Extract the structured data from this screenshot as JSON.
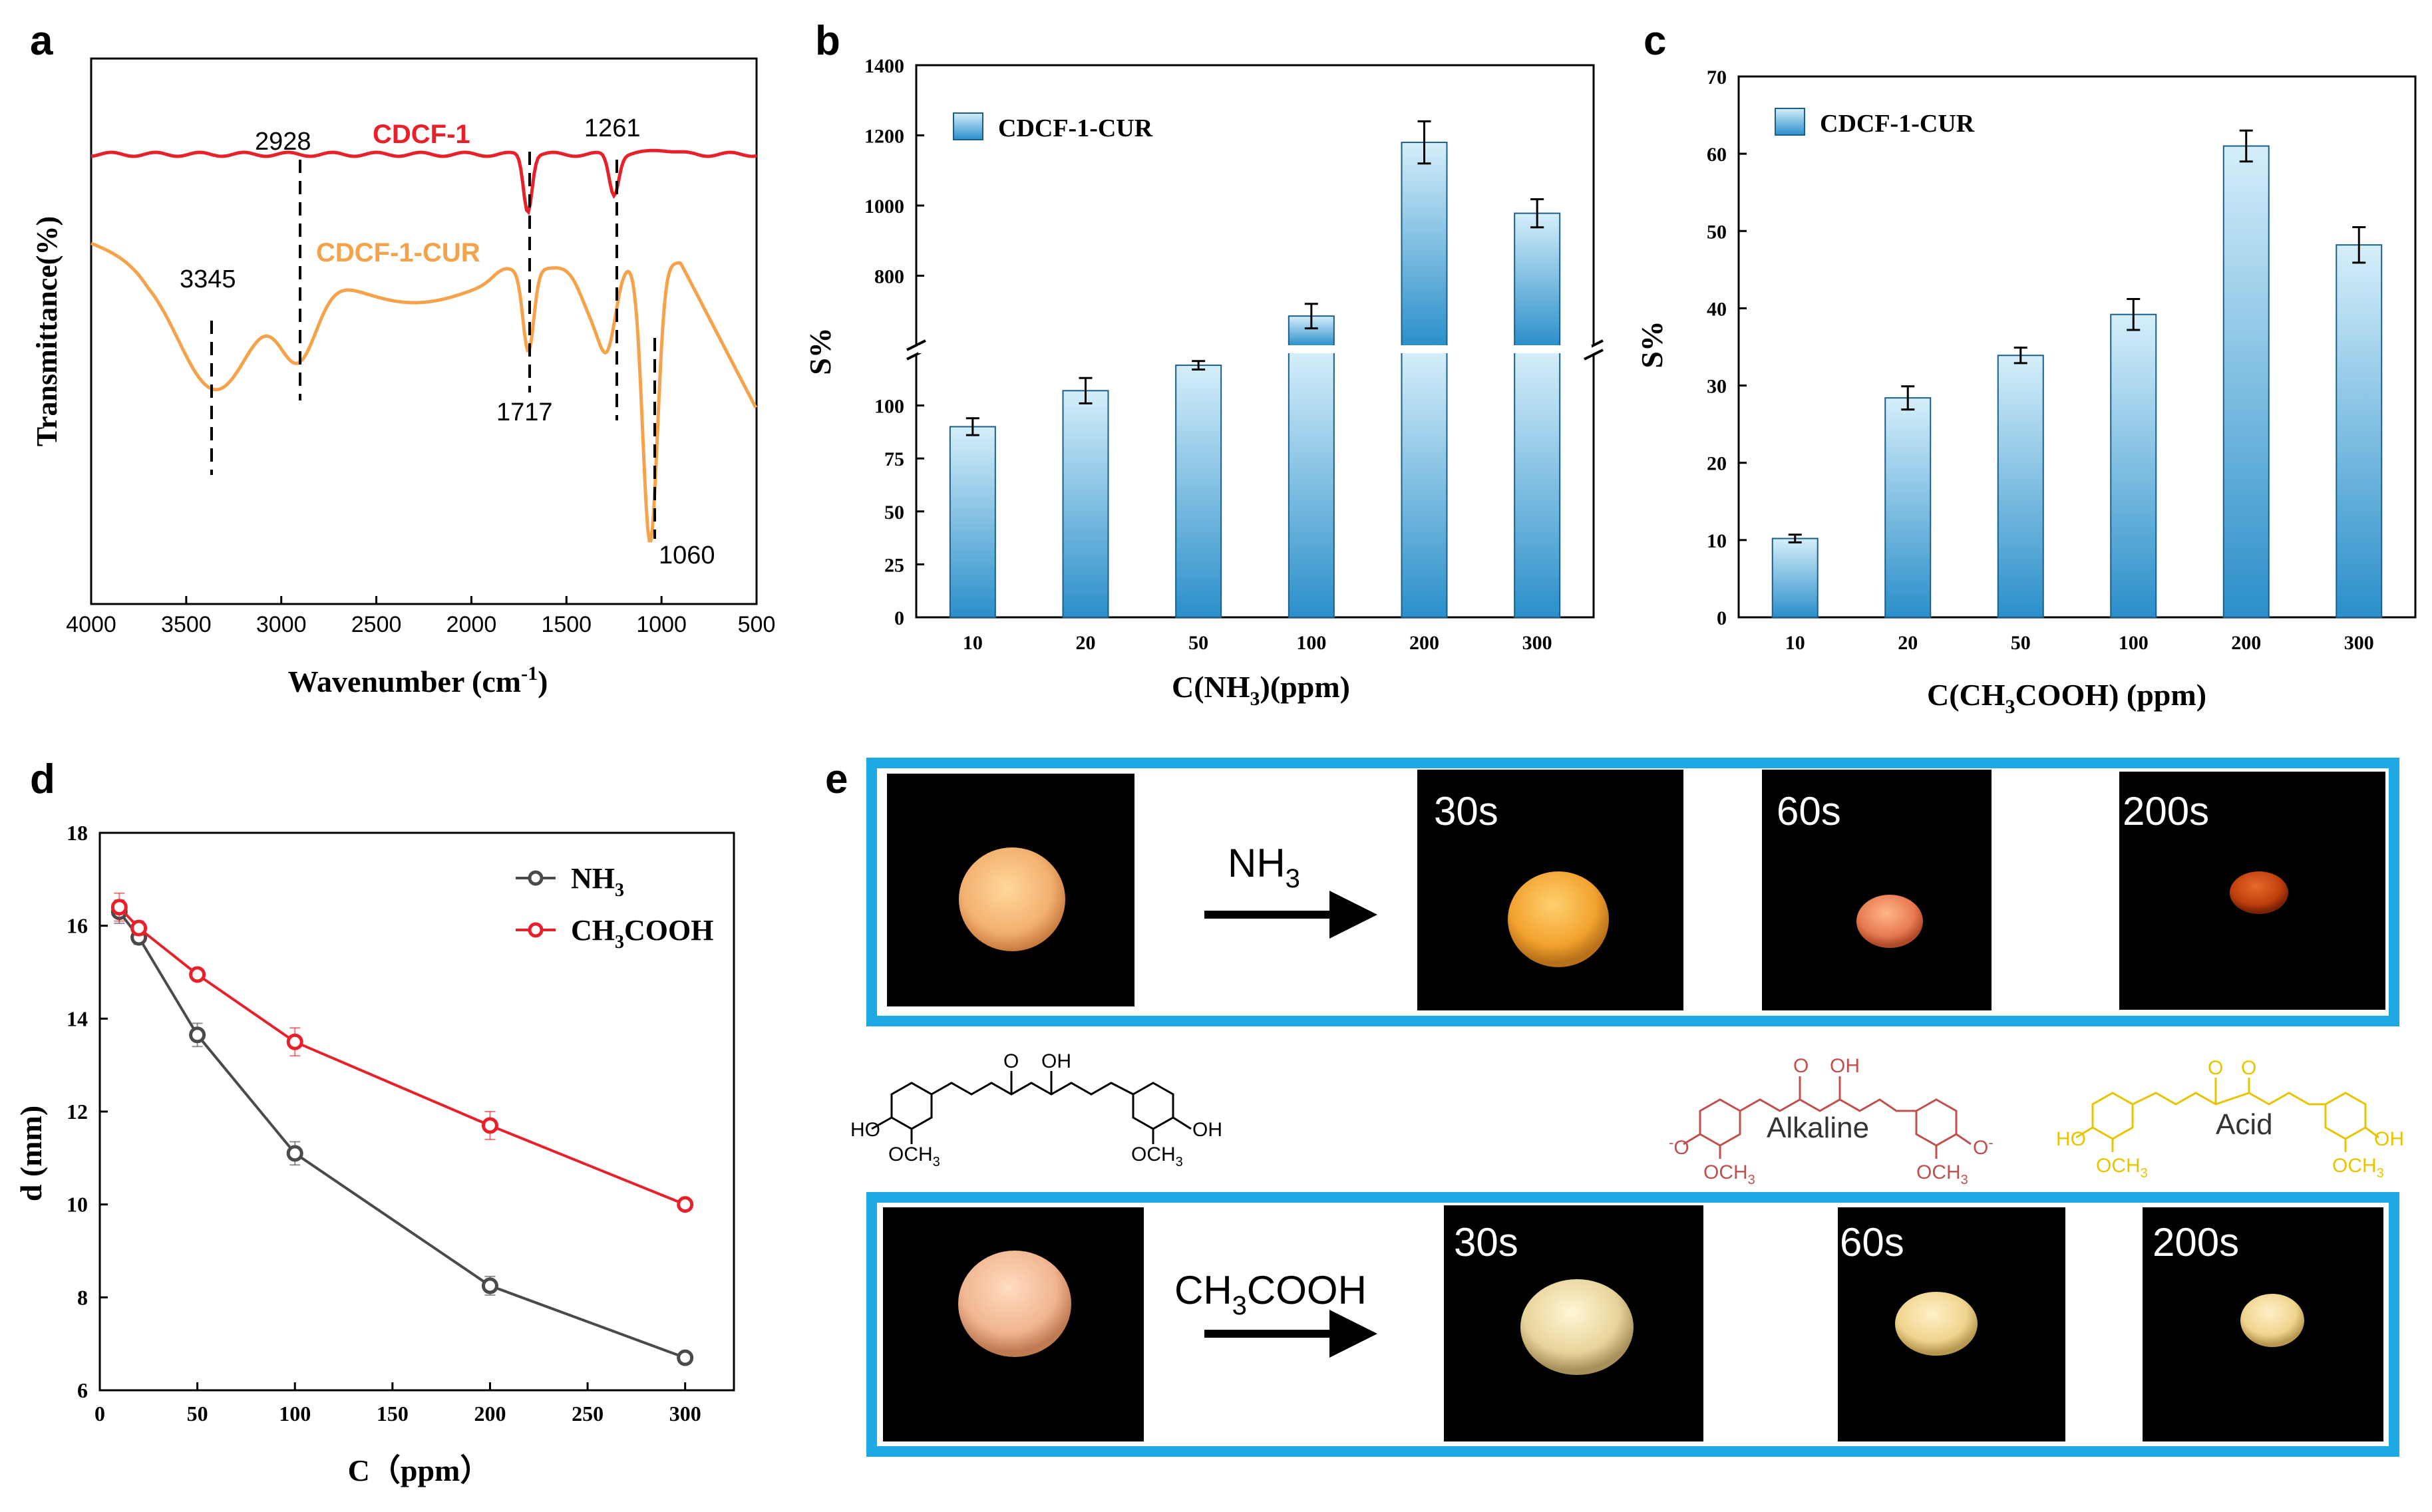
{
  "panels": {
    "a": {
      "label": "a"
    },
    "b": {
      "label": "b"
    },
    "c": {
      "label": "c"
    },
    "d": {
      "label": "d"
    },
    "e": {
      "label": "e"
    }
  },
  "colors": {
    "red": "#e8202a",
    "orange": "#f5a24a",
    "blue_frame": "#1ea8e4",
    "grey_line": "#4a4a4a",
    "bar_top": "#d5eefa",
    "bar_bottom": "#2b8fca"
  },
  "chart_data": [
    {
      "id": "a",
      "type": "line",
      "xlabel": "Wavenumber (cm",
      "xlabel_sup": "-1",
      "xlabel_end": ")",
      "ylabel": "Transmittance(%)",
      "xlim": [
        4000,
        500
      ],
      "xticks": [
        "4000",
        "3500",
        "3000",
        "2500",
        "2000",
        "1500",
        "1000",
        "500"
      ],
      "series": [
        {
          "name": "CDCF-1",
          "color": "#e8202a"
        },
        {
          "name": "CDCF-1-CUR",
          "color": "#f5a24a"
        }
      ],
      "annotations": [
        "2928",
        "1261",
        "3345",
        "1717",
        "1060"
      ]
    },
    {
      "id": "b",
      "type": "bar",
      "categories": [
        "10",
        "20",
        "50",
        "100",
        "200",
        "300"
      ],
      "values": [
        90,
        107,
        119,
        685,
        1180,
        978
      ],
      "errors": [
        4,
        6,
        2,
        35,
        60,
        40
      ],
      "legend": "CDCF-1-CUR",
      "ylabel": "S%",
      "xlabel": "C(NH",
      "xlabel_sub": "3",
      "xlabel_end": ")(ppm)",
      "broken_axis": {
        "lower": [
          0,
          125
        ],
        "upper": [
          600,
          1400
        ]
      },
      "yticks_lower": [
        "0",
        "25",
        "50",
        "75",
        "100"
      ],
      "yticks_upper": [
        "800",
        "1000",
        "1200",
        "1400"
      ]
    },
    {
      "id": "c",
      "type": "bar",
      "categories": [
        "10",
        "20",
        "50",
        "100",
        "200",
        "300"
      ],
      "values": [
        10.2,
        28.4,
        33.9,
        39.2,
        61.0,
        48.2
      ],
      "errors": [
        0.5,
        1.5,
        1.0,
        2.0,
        2.0,
        2.3
      ],
      "legend": "CDCF-1-CUR",
      "ylabel": "S%",
      "xlabel": "C(CH",
      "xlabel_sub": "3",
      "xlabel_end": "COOH) (ppm)",
      "ylim": [
        0,
        70
      ],
      "yticks": [
        "0",
        "10",
        "20",
        "30",
        "40",
        "50",
        "60",
        "70"
      ]
    },
    {
      "id": "d",
      "type": "line",
      "xlabel": "C（ppm）",
      "ylabel": "d (mm)",
      "xlim": [
        0,
        325
      ],
      "ylim": [
        6,
        18
      ],
      "xticks": [
        "0",
        "50",
        "100",
        "150",
        "200",
        "250",
        "300"
      ],
      "yticks": [
        "6",
        "8",
        "10",
        "12",
        "14",
        "16",
        "18"
      ],
      "series": [
        {
          "name": "NH",
          "name_sub": "3",
          "name_end": "",
          "color": "#4a4a4a",
          "x": [
            10,
            20,
            50,
            100,
            200,
            300
          ],
          "y": [
            16.3,
            15.75,
            13.65,
            11.1,
            8.25,
            6.7
          ],
          "err": [
            0.25,
            0.15,
            0.25,
            0.25,
            0.2,
            0.1
          ]
        },
        {
          "name": "CH",
          "name_sub": "3",
          "name_end": "COOH",
          "color": "#e8202a",
          "x": [
            10,
            20,
            50,
            100,
            200,
            300
          ],
          "y": [
            16.4,
            15.95,
            14.95,
            13.5,
            11.7,
            10.0
          ],
          "err": [
            0.3,
            0.15,
            0.1,
            0.3,
            0.3,
            0.1
          ]
        }
      ]
    }
  ],
  "panel_e": {
    "row1": {
      "reagent": "NH",
      "reagent_sub": "3",
      "reagent_end": "",
      "times": [
        "30s",
        "60s",
        "200s"
      ]
    },
    "row2": {
      "reagent": "CH",
      "reagent_sub": "3",
      "reagent_end": "COOH",
      "times": [
        "30s",
        "60s",
        "200s"
      ]
    },
    "structures": {
      "neutral": {
        "o_label": "O",
        "oh_label": "OH",
        "ho_left": "HO",
        "och3_left": "OCH",
        "och3_sub": "3",
        "oh_right": "OH"
      },
      "alkaline": {
        "label": "Alkaline",
        "o1": "O",
        "oh": "OH",
        "o_minus_left": "O",
        "o_minus_right": "O",
        "och3": "OCH",
        "sub": "3"
      },
      "acid": {
        "label": "Acid",
        "o1": "O",
        "o2": "O",
        "ho": "HO",
        "oh": "OH",
        "och3": "OCH",
        "sub": "3"
      }
    }
  }
}
